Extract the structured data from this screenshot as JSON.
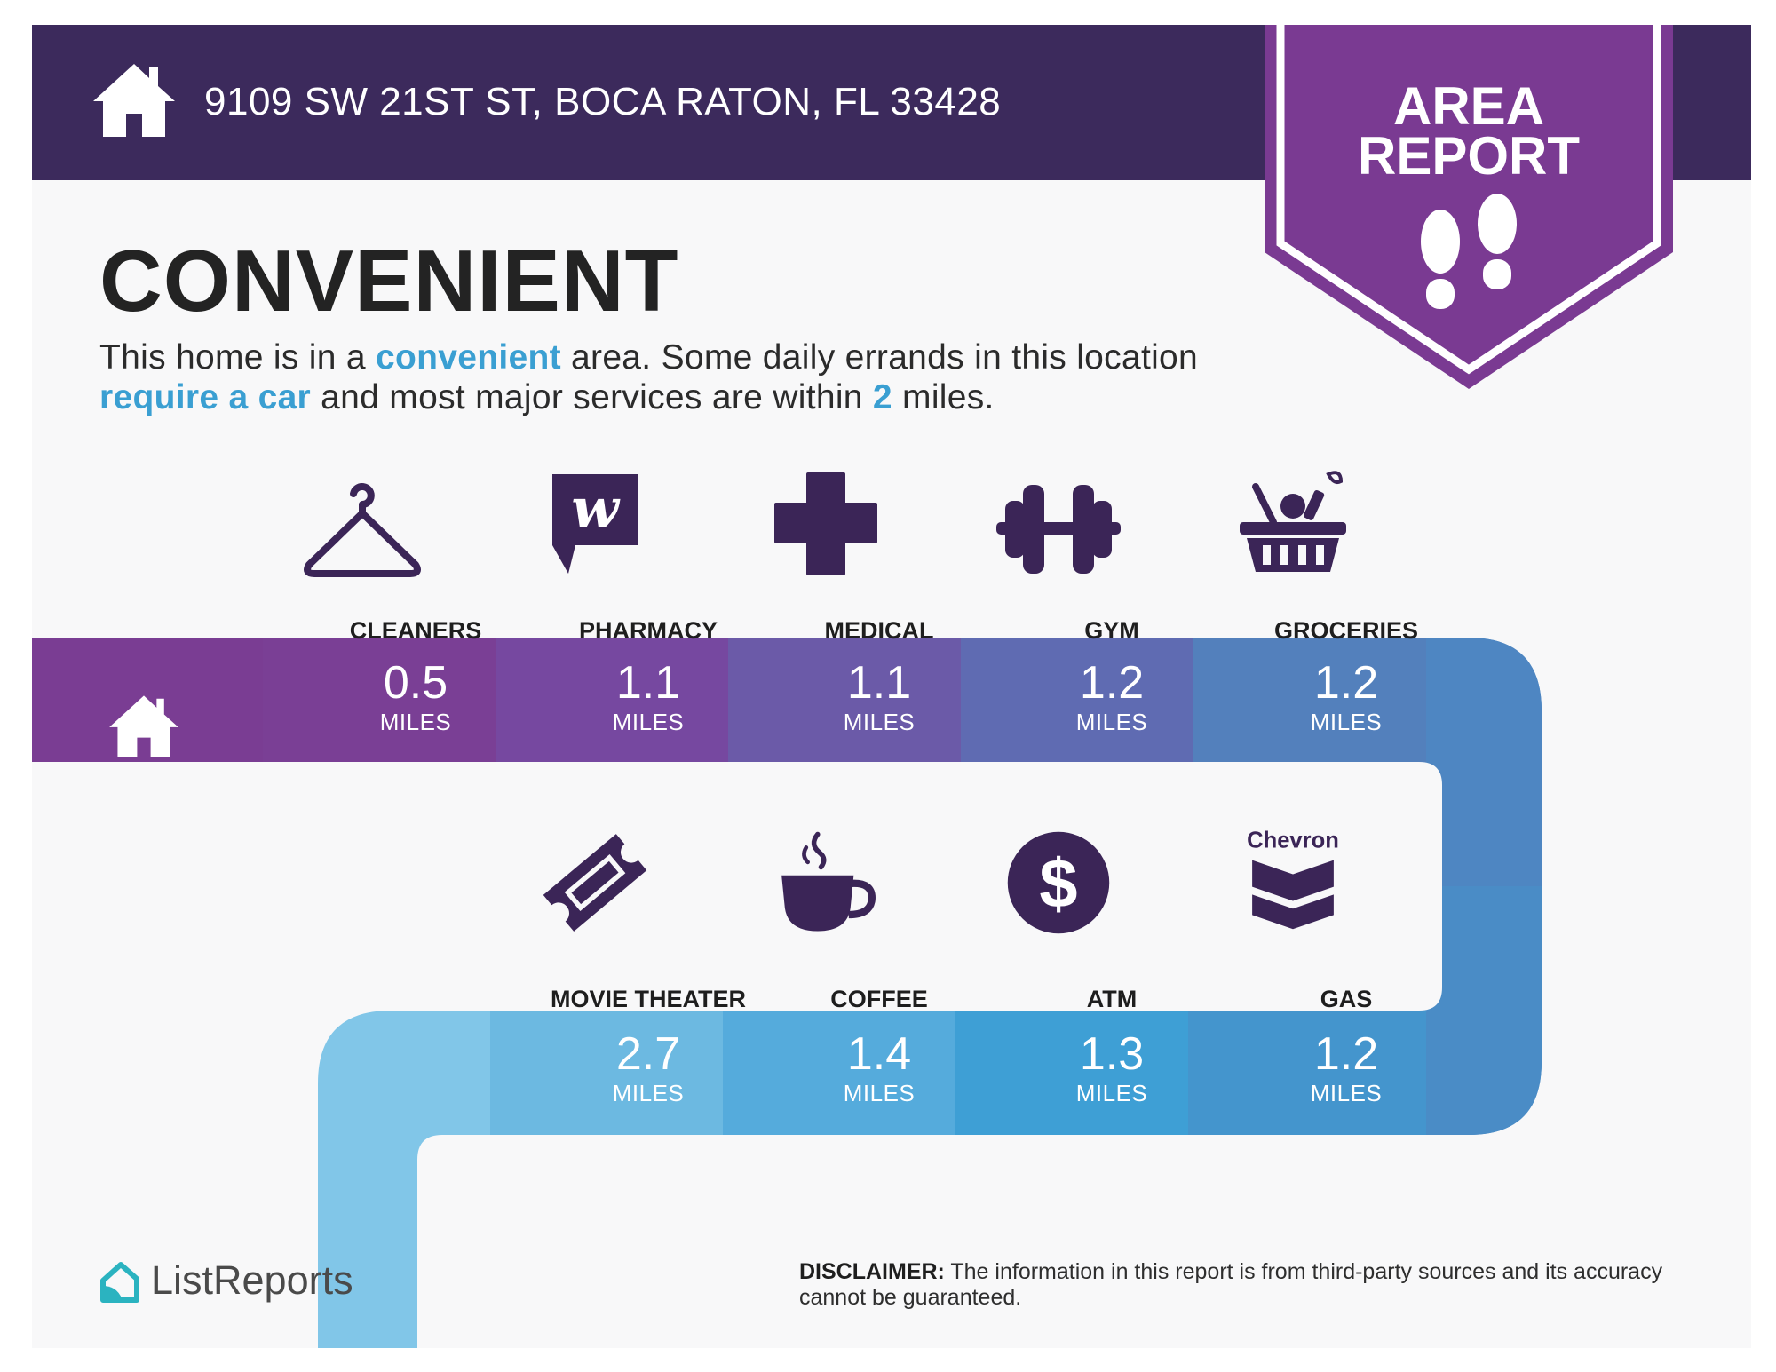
{
  "header": {
    "address": "9109 SW 21ST ST, BOCA RATON, FL 33428",
    "badge_line1": "AREA",
    "badge_line2": "REPORT"
  },
  "intro": {
    "title": "CONVENIENT",
    "parts": [
      "This home is in a ",
      "convenient",
      " area. Some daily errands in this location ",
      "require a car",
      " and most major services are within ",
      "2",
      " miles."
    ]
  },
  "amenities_top": [
    {
      "label": "CLEANERS",
      "icon": "hanger-icon",
      "distance": "0.5",
      "unit": "MILES"
    },
    {
      "label": "PHARMACY",
      "icon": "walgreens-icon",
      "distance": "1.1",
      "unit": "MILES"
    },
    {
      "label": "MEDICAL",
      "icon": "medical-cross-icon",
      "distance": "1.1",
      "unit": "MILES"
    },
    {
      "label": "GYM",
      "icon": "dumbbell-icon",
      "distance": "1.2",
      "unit": "MILES"
    },
    {
      "label": "GROCERIES",
      "icon": "grocery-basket-icon",
      "distance": "1.2",
      "unit": "MILES"
    }
  ],
  "amenities_bottom": [
    {
      "label": "MOVIE THEATER",
      "icon": "ticket-icon",
      "distance": "2.7",
      "unit": "MILES"
    },
    {
      "label": "COFFEE",
      "icon": "coffee-cup-icon",
      "distance": "1.4",
      "unit": "MILES"
    },
    {
      "label": "ATM",
      "icon": "dollar-icon",
      "distance": "1.3",
      "unit": "MILES"
    },
    {
      "label": "GAS",
      "icon": "chevron-logo-icon",
      "distance": "1.2",
      "unit": "MILES",
      "brand": "Chevron"
    }
  ],
  "footer": {
    "logo_text": "ListReports",
    "disclaimer_label": "DISCLAIMER:",
    "disclaimer_text": " The information in this report is from third-party sources and its accuracy cannot be guaranteed."
  },
  "colors": {
    "header": "#3c2a5c",
    "badge": "#7a3a92",
    "highlight": "#3a9fd2",
    "icon": "#3b2557",
    "ribbon_top": [
      "#7a3d93",
      "#7a3f95",
      "#7648a0",
      "#6b5aa8",
      "#5f6bb2",
      "#5380bc",
      "#4d89c3"
    ],
    "ribbon_bottom": [
      "#81c6e8",
      "#6cb9e1",
      "#55abdc",
      "#3e9fd5",
      "#4495cd",
      "#4a8bc5"
    ]
  }
}
